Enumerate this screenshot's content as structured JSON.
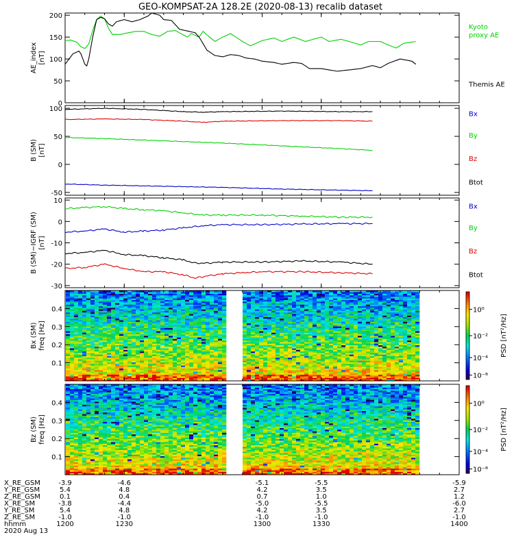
{
  "title": "GEO-KOMPSAT-2A 128.2E (2020-08-13) recalib dataset",
  "chart_data": [
    {
      "type": "line",
      "id": "ae_panel",
      "ylabel": "AE_index",
      "yunit": "[nT]",
      "ylim": [
        0,
        205
      ],
      "yticks": [
        0,
        50,
        100,
        150,
        200
      ],
      "x": [
        1200,
        1230,
        1300,
        1330,
        1400
      ],
      "series": [
        {
          "name": "Kyoto proxy AE",
          "label_lines": [
            "Kyoto",
            "proxy AE"
          ],
          "color": "#00d000",
          "points": [
            [
              1200,
              142
            ],
            [
              1203,
              143
            ],
            [
              1206,
              138
            ],
            [
              1208,
              128
            ],
            [
              1210,
              124
            ],
            [
              1212,
              134
            ],
            [
              1214,
              165
            ],
            [
              1216,
              190
            ],
            [
              1218,
              198
            ],
            [
              1220,
              192
            ],
            [
              1222,
              170
            ],
            [
              1224,
              156
            ],
            [
              1228,
              156
            ],
            [
              1232,
              160
            ],
            [
              1236,
              163
            ],
            [
              1240,
              163
            ],
            [
              1244,
              156
            ],
            [
              1248,
              152
            ],
            [
              1252,
              163
            ],
            [
              1256,
              165
            ],
            [
              1258,
              160
            ],
            [
              1262,
              150
            ],
            [
              1264,
              158
            ],
            [
              1268,
              150
            ],
            [
              1270,
              163
            ],
            [
              1272,
              155
            ],
            [
              1276,
              140
            ],
            [
              1280,
              150
            ],
            [
              1284,
              158
            ],
            [
              1290,
              140
            ],
            [
              1294,
              130
            ],
            [
              1300,
              142
            ],
            [
              1306,
              148
            ],
            [
              1310,
              140
            ],
            [
              1316,
              150
            ],
            [
              1322,
              140
            ],
            [
              1326,
              145
            ],
            [
              1330,
              150
            ],
            [
              1334,
              140
            ],
            [
              1340,
              145
            ],
            [
              1344,
              140
            ],
            [
              1350,
              132
            ],
            [
              1354,
              140
            ],
            [
              1360,
              140
            ],
            [
              1364,
              132
            ],
            [
              1368,
              125
            ],
            [
              1372,
              136
            ],
            [
              1378,
              140
            ]
          ]
        },
        {
          "name": "Themis AE",
          "label_lines": [
            "Themis AE"
          ],
          "color": "#000000",
          "points": [
            [
              1200,
              88
            ],
            [
              1202,
              100
            ],
            [
              1204,
              112
            ],
            [
              1207,
              118
            ],
            [
              1208,
              112
            ],
            [
              1210,
              88
            ],
            [
              1211,
              84
            ],
            [
              1212,
              100
            ],
            [
              1214,
              150
            ],
            [
              1216,
              190
            ],
            [
              1218,
              195
            ],
            [
              1220,
              192
            ],
            [
              1222,
              180
            ],
            [
              1224,
              175
            ],
            [
              1226,
              185
            ],
            [
              1230,
              190
            ],
            [
              1234,
              185
            ],
            [
              1238,
              190
            ],
            [
              1242,
              198
            ],
            [
              1244,
              205
            ],
            [
              1248,
              200
            ],
            [
              1250,
              190
            ],
            [
              1254,
              188
            ],
            [
              1258,
              168
            ],
            [
              1262,
              164
            ],
            [
              1266,
              160
            ],
            [
              1268,
              150
            ],
            [
              1272,
              120
            ],
            [
              1276,
              108
            ],
            [
              1280,
              105
            ],
            [
              1284,
              110
            ],
            [
              1288,
              108
            ],
            [
              1292,
              102
            ],
            [
              1296,
              100
            ],
            [
              1300,
              95
            ],
            [
              1306,
              92
            ],
            [
              1310,
              88
            ],
            [
              1316,
              92
            ],
            [
              1320,
              90
            ],
            [
              1324,
              78
            ],
            [
              1330,
              78
            ],
            [
              1334,
              75
            ],
            [
              1338,
              72
            ],
            [
              1344,
              75
            ],
            [
              1350,
              78
            ],
            [
              1356,
              85
            ],
            [
              1360,
              80
            ],
            [
              1364,
              90
            ],
            [
              1370,
              100
            ],
            [
              1376,
              95
            ],
            [
              1378,
              88
            ]
          ]
        }
      ]
    },
    {
      "type": "line",
      "id": "b_panel",
      "ylabel": "B (SM)",
      "yunit": "[nT]",
      "ylim": [
        -55,
        105
      ],
      "yticks": [
        -50,
        0,
        50,
        100
      ],
      "x": [
        1200,
        1230,
        1300,
        1330,
        1400
      ],
      "series": [
        {
          "name": "Bx",
          "color": "#0000cc",
          "points": [
            [
              1200,
              -35
            ],
            [
              1220,
              -37
            ],
            [
              1250,
              -39
            ],
            [
              1280,
              -41
            ],
            [
              1310,
              -44
            ],
            [
              1340,
              -46
            ],
            [
              1356,
              -47
            ]
          ]
        },
        {
          "name": "By",
          "color": "#00d000",
          "points": [
            [
              1200,
              48
            ],
            [
              1220,
              46
            ],
            [
              1250,
              42
            ],
            [
              1280,
              38
            ],
            [
              1310,
              33
            ],
            [
              1340,
              28
            ],
            [
              1356,
              25
            ]
          ]
        },
        {
          "name": "Bz",
          "color": "#dd0000",
          "points": [
            [
              1200,
              80
            ],
            [
              1220,
              81
            ],
            [
              1240,
              80
            ],
            [
              1260,
              77
            ],
            [
              1270,
              75
            ],
            [
              1280,
              77
            ],
            [
              1310,
              78
            ],
            [
              1340,
              78
            ],
            [
              1356,
              77
            ]
          ]
        },
        {
          "name": "Btot",
          "color": "#000000",
          "points": [
            [
              1200,
              98
            ],
            [
              1220,
              100
            ],
            [
              1240,
              98
            ],
            [
              1260,
              94
            ],
            [
              1270,
              93
            ],
            [
              1280,
              94
            ],
            [
              1310,
              95
            ],
            [
              1340,
              94
            ],
            [
              1356,
              94
            ]
          ]
        }
      ]
    },
    {
      "type": "line",
      "id": "db_panel",
      "ylabel": "B (SM)−IGRF (SM)",
      "yunit": "[nT]",
      "ylim": [
        -31,
        11
      ],
      "yticks": [
        -30,
        -20,
        -10,
        0,
        10
      ],
      "x": [
        1200,
        1230,
        1300,
        1330,
        1400
      ],
      "series": [
        {
          "name": "Bx",
          "color": "#0000cc",
          "points": [
            [
              1200,
              -5
            ],
            [
              1210,
              -4.5
            ],
            [
              1220,
              -3.5
            ],
            [
              1230,
              -5
            ],
            [
              1240,
              -4.5
            ],
            [
              1250,
              -4
            ],
            [
              1260,
              -3
            ],
            [
              1270,
              -2
            ],
            [
              1280,
              -1.5
            ],
            [
              1300,
              -1.5
            ],
            [
              1320,
              -1.2
            ],
            [
              1340,
              -1
            ],
            [
              1356,
              -1
            ]
          ]
        },
        {
          "name": "By",
          "color": "#00d000",
          "points": [
            [
              1200,
              6
            ],
            [
              1210,
              6.5
            ],
            [
              1220,
              7
            ],
            [
              1230,
              6
            ],
            [
              1240,
              5.5
            ],
            [
              1250,
              5
            ],
            [
              1260,
              4
            ],
            [
              1270,
              3
            ],
            [
              1280,
              3
            ],
            [
              1300,
              3
            ],
            [
              1320,
              2.5
            ],
            [
              1340,
              2
            ],
            [
              1356,
              2
            ]
          ]
        },
        {
          "name": "Bz",
          "color": "#dd0000",
          "points": [
            [
              1200,
              -22
            ],
            [
              1210,
              -21.5
            ],
            [
              1220,
              -20
            ],
            [
              1230,
              -22
            ],
            [
              1240,
              -23.5
            ],
            [
              1250,
              -23.5
            ],
            [
              1260,
              -25
            ],
            [
              1266,
              -26.5
            ],
            [
              1272,
              -25.5
            ],
            [
              1280,
              -24.5
            ],
            [
              1290,
              -24
            ],
            [
              1300,
              -23.5
            ],
            [
              1320,
              -23.5
            ],
            [
              1340,
              -24
            ],
            [
              1356,
              -24.5
            ]
          ]
        },
        {
          "name": "Btot",
          "color": "#000000",
          "points": [
            [
              1200,
              -15
            ],
            [
              1210,
              -14.5
            ],
            [
              1220,
              -13.5
            ],
            [
              1230,
              -15.5
            ],
            [
              1240,
              -16
            ],
            [
              1250,
              -17
            ],
            [
              1260,
              -18
            ],
            [
              1266,
              -19.5
            ],
            [
              1272,
              -19.5
            ],
            [
              1280,
              -19
            ],
            [
              1300,
              -19
            ],
            [
              1320,
              -18.5
            ],
            [
              1340,
              -19
            ],
            [
              1356,
              -20
            ]
          ]
        }
      ]
    },
    {
      "type": "heatmap",
      "id": "bx_spec",
      "ylabel": "Bx (SM)",
      "yunit": "freq [Hz]",
      "ylim": [
        0,
        0.5
      ],
      "yticks": [
        0.1,
        0.2,
        0.3,
        0.4
      ],
      "gap": [
        1282,
        1290
      ],
      "data_end": 1378,
      "colorbar": {
        "label": "PSD [nT²/Hz]",
        "ticks": [
          {
            "label": "10⁰",
            "pos": 0.8
          },
          {
            "label": "10⁻²",
            "pos": 0.5
          },
          {
            "label": "10⁻⁴",
            "pos": 0.25
          },
          {
            "label": "10⁻⁶",
            "pos": 0.05
          }
        ]
      }
    },
    {
      "type": "heatmap",
      "id": "bz_spec",
      "ylabel": "Bz (SM)",
      "yunit": "freq [Hz]",
      "ylim": [
        0,
        0.5
      ],
      "yticks": [
        0.1,
        0.2,
        0.3,
        0.4
      ],
      "gap": [
        1282,
        1290
      ],
      "data_end": 1378,
      "colorbar": {
        "label": "PSD [nT²/Hz]",
        "ticks": [
          {
            "label": "10⁰",
            "pos": 0.8
          },
          {
            "label": "10⁻²",
            "pos": 0.5
          },
          {
            "label": "10⁻⁴",
            "pos": 0.25
          },
          {
            "label": "10⁻⁶",
            "pos": 0.05
          }
        ]
      }
    }
  ],
  "xlim": [
    1200,
    1400
  ],
  "ephemeris": {
    "rows": [
      {
        "label": "X_RE_GSM",
        "values": [
          "-3.9",
          "-4.6",
          "-5.1",
          "-5.5",
          "-5.9"
        ]
      },
      {
        "label": "Y_RE_GSM",
        "values": [
          "5.4",
          "4.8",
          "4.2",
          "3.5",
          "2.7"
        ]
      },
      {
        "label": "Z_RE_GSM",
        "values": [
          "0.1",
          "0.4",
          "0.7",
          "1.0",
          "1.2"
        ]
      },
      {
        "label": "X_RE_SM",
        "values": [
          "-3.8",
          "-4.4",
          "-5.0",
          "-5.5",
          "-6.0"
        ]
      },
      {
        "label": "Y_RE_SM",
        "values": [
          "5.4",
          "4.8",
          "4.2",
          "3.5",
          "2.7"
        ]
      },
      {
        "label": "Z_RE_SM",
        "values": [
          "-1.0",
          "-1.0",
          "-1.0",
          "-1.0",
          "-1.0"
        ]
      },
      {
        "label": "hhmm",
        "values": [
          "1200",
          "1230",
          "1300",
          "1330",
          "1400"
        ]
      }
    ],
    "date": "2020 Aug 13"
  }
}
